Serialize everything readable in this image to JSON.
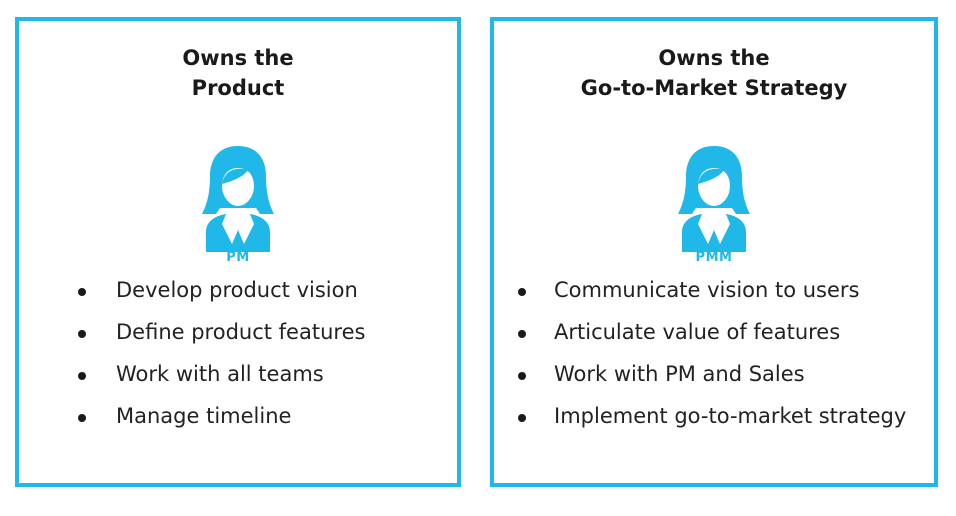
{
  "colors": {
    "accent": "#1fb8e8",
    "text": "#222222"
  },
  "cards": [
    {
      "title_lines": [
        "Owns the",
        "Product"
      ],
      "persona_icon": "woman-avatar-icon",
      "persona_label": "PM",
      "bullets": [
        "Develop product vision",
        "Define product features",
        "Work with all teams",
        "Manage timeline"
      ]
    },
    {
      "title_lines": [
        "Owns the",
        "Go-to-Market Strategy"
      ],
      "persona_icon": "woman-avatar-icon",
      "persona_label": "PMM",
      "bullets": [
        "Communicate vision to users",
        "Articulate value of  features",
        "Work with PM and Sales",
        "Implement go-to-market strategy"
      ]
    }
  ]
}
